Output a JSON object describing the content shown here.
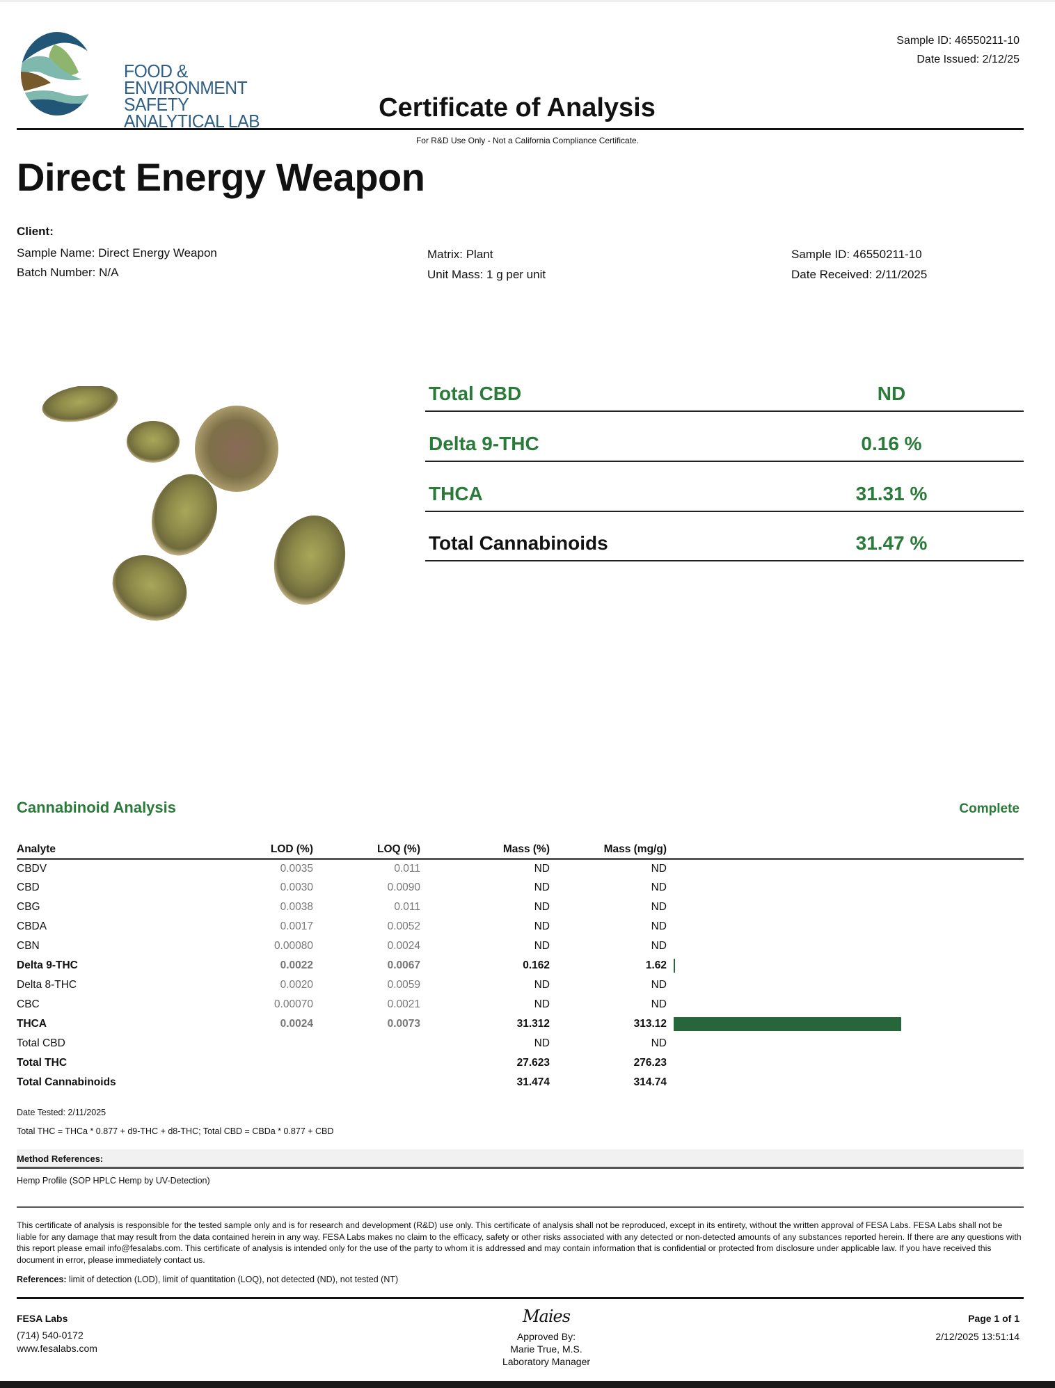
{
  "header": {
    "logo_text": [
      "FOOD &",
      "ENVIRONMENT",
      "SAFETY",
      "ANALYTICAL LAB"
    ],
    "sample_id": "Sample ID: 46550211-10",
    "date_issued": "Date Issued: 2/12/25",
    "title": "Certificate of Analysis",
    "disclaimer": "For R&D Use Only - Not a California Compliance Certificate."
  },
  "product_name": "Direct Energy Weapon",
  "client": {
    "label": "Client:",
    "sample_name": "Sample Name: Direct Energy Weapon",
    "batch_number": "Batch Number: N/A",
    "matrix": "Matrix: Plant",
    "unit_mass": "Unit Mass: 1 g per unit",
    "sample_id": "Sample ID: 46550211-10",
    "date_received": "Date Received: 2/11/2025"
  },
  "summary": [
    {
      "label": "Total CBD",
      "value": "ND"
    },
    {
      "label": "Delta 9-THC",
      "value": "0.16 %"
    },
    {
      "label": "THCA",
      "value": "31.31 %"
    },
    {
      "label": "Total Cannabinoids",
      "value": "31.47 %"
    }
  ],
  "analysis": {
    "title": "Cannabinoid Analysis",
    "status": "Complete",
    "accent_color": "#26663a",
    "columns": [
      "Analyte",
      "LOD (%)",
      "LOQ (%)",
      "Mass (%)",
      "Mass (mg/g)"
    ],
    "rows": [
      {
        "analyte": "CBDV",
        "lod": "0.0035",
        "loq": "0.011",
        "mass_pct": "ND",
        "mass_mg": "ND",
        "bold": false
      },
      {
        "analyte": "CBD",
        "lod": "0.0030",
        "loq": "0.0090",
        "mass_pct": "ND",
        "mass_mg": "ND",
        "bold": false
      },
      {
        "analyte": "CBG",
        "lod": "0.0038",
        "loq": "0.011",
        "mass_pct": "ND",
        "mass_mg": "ND",
        "bold": false
      },
      {
        "analyte": "CBDA",
        "lod": "0.0017",
        "loq": "0.0052",
        "mass_pct": "ND",
        "mass_mg": "ND",
        "bold": false
      },
      {
        "analyte": "CBN",
        "lod": "0.00080",
        "loq": "0.0024",
        "mass_pct": "ND",
        "mass_mg": "ND",
        "bold": false
      },
      {
        "analyte": "Delta 9-THC",
        "lod": "0.0022",
        "loq": "0.0067",
        "mass_pct": "0.162",
        "mass_mg": "1.62",
        "bold": true,
        "bar_mg": 1.62
      },
      {
        "analyte": "Delta 8-THC",
        "lod": "0.0020",
        "loq": "0.0059",
        "mass_pct": "ND",
        "mass_mg": "ND",
        "bold": false
      },
      {
        "analyte": "CBC",
        "lod": "0.00070",
        "loq": "0.0021",
        "mass_pct": "ND",
        "mass_mg": "ND",
        "bold": false
      },
      {
        "analyte": "THCA",
        "lod": "0.0024",
        "loq": "0.0073",
        "mass_pct": "31.312",
        "mass_mg": "313.12",
        "bold": true,
        "bar_mg": 313.12
      },
      {
        "analyte": "Total CBD",
        "lod": "",
        "loq": "",
        "mass_pct": "ND",
        "mass_mg": "ND",
        "bold": false
      },
      {
        "analyte": "Total THC",
        "lod": "",
        "loq": "",
        "mass_pct": "27.623",
        "mass_mg": "276.23",
        "bold": true
      },
      {
        "analyte": "Total Cannabinoids",
        "lod": "",
        "loq": "",
        "mass_pct": "31.474",
        "mass_mg": "314.74",
        "bold": true
      }
    ],
    "date_tested": "Date Tested: 2/11/2025",
    "formula": "Total THC = THCa * 0.877 + d9-THC + d8-THC; Total CBD = CBDa * 0.877 + CBD"
  },
  "method": {
    "label": "Method References:",
    "value": "Hemp Profile (SOP HPLC Hemp by UV-Detection)"
  },
  "legal": {
    "text": "This certificate of analysis is responsible for the tested sample only and is for research and development (R&D) use only. This certificate of analysis shall not be reproduced, except in its entirety, without the written approval of FESA Labs. FESA Labs shall not be liable for any damage that may result from the data contained herein in any way. FESA Labs makes no claim to the efficacy, safety or other risks associated with any detected or non-detected amounts of any substances reported herein. If there are any questions with this report please email info@fesalabs.com. This certificate of analysis is intended only for the use of the party to whom it is addressed and may contain information that is confidential or protected from disclosure under applicable law. If you have received this document in error, please immediately contact us.",
    "references_label": "References:",
    "references_text": " limit of detection (LOD), limit of quantitation (LOQ), not detected (ND), not tested (NT)"
  },
  "footer": {
    "company": "FESA Labs",
    "phone": "(714) 540-0172",
    "website": "www.fesalabs.com",
    "signature": "Maies",
    "approved_by": "Approved By:",
    "approver": "Marie True, M.S.",
    "approver_title": "Laboratory Manager",
    "page": "Page 1 of 1",
    "timestamp": "2/12/2025 13:51:14"
  }
}
